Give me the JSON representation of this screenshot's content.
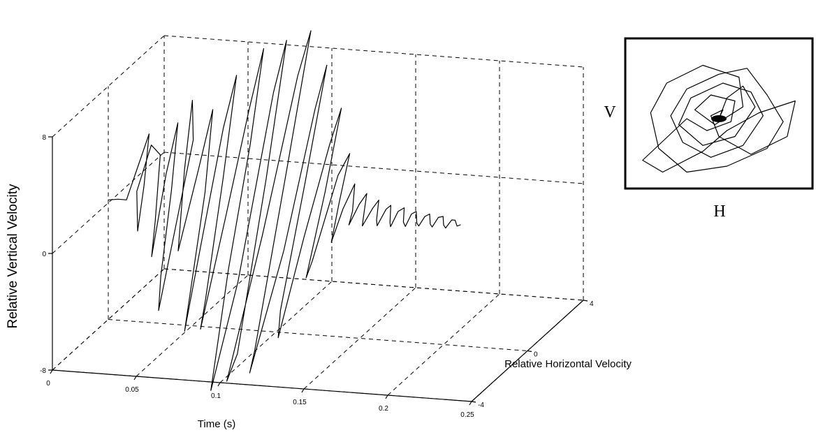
{
  "chart_data": [
    {
      "type": "line",
      "projection": "3d",
      "xlabel": "Time (s)",
      "ylabel": "Relative Horizontal Velocity",
      "zlabel": "Relative Vertical Velocity",
      "xlim": [
        0,
        0.25
      ],
      "ylim": [
        -4,
        4
      ],
      "zlim": [
        -8,
        8
      ],
      "x_ticks": [
        "0",
        "0.05",
        "0.1",
        "0.15",
        "0.2",
        "0.25"
      ],
      "y_ticks": [
        "-4",
        "0",
        "4"
      ],
      "z_ticks": [
        "-8",
        "0",
        "8"
      ],
      "grid": true,
      "series": [
        {
          "points": [
            [
              0.0,
              0.0,
              0.2
            ],
            [
              0.006,
              0.0,
              0.3
            ],
            [
              0.01,
              0.1,
              0.2
            ],
            [
              0.013,
              0.5,
              2.0
            ],
            [
              0.016,
              1.0,
              4.0
            ],
            [
              0.018,
              0.4,
              1.0
            ],
            [
              0.02,
              -0.3,
              -1.5
            ],
            [
              0.022,
              -0.6,
              1.5
            ],
            [
              0.024,
              0.2,
              4.0
            ],
            [
              0.026,
              0.6,
              3.0
            ],
            [
              0.028,
              0.0,
              -1.0
            ],
            [
              0.03,
              -0.5,
              -3.0
            ],
            [
              0.032,
              0.3,
              2.0
            ],
            [
              0.034,
              0.9,
              5.0
            ],
            [
              0.036,
              0.2,
              1.0
            ],
            [
              0.038,
              -0.8,
              -4.0
            ],
            [
              0.04,
              -1.2,
              -6.0
            ],
            [
              0.042,
              -0.2,
              -1.0
            ],
            [
              0.044,
              0.8,
              4.0
            ],
            [
              0.046,
              0.5,
              7.0
            ],
            [
              0.048,
              -0.3,
              3.0
            ],
            [
              0.05,
              -1.0,
              -2.0
            ],
            [
              0.052,
              0.2,
              2.5
            ],
            [
              0.054,
              1.0,
              6.0
            ],
            [
              0.056,
              0.2,
              1.0
            ],
            [
              0.058,
              -1.5,
              -7.0
            ],
            [
              0.06,
              -0.6,
              -2.0
            ],
            [
              0.062,
              0.8,
              5.0
            ],
            [
              0.064,
              1.5,
              8.0
            ],
            [
              0.066,
              0.3,
              2.0
            ],
            [
              0.068,
              -1.2,
              -5.0
            ],
            [
              0.07,
              -1.8,
              -6.5
            ],
            [
              0.072,
              -0.2,
              0.0
            ],
            [
              0.074,
              1.2,
              6.0
            ],
            [
              0.076,
              2.0,
              9.5
            ],
            [
              0.078,
              0.8,
              4.0
            ],
            [
              0.08,
              -1.0,
              -3.0
            ],
            [
              0.082,
              -2.5,
              -10.0
            ],
            [
              0.084,
              -0.8,
              -4.0
            ],
            [
              0.086,
              1.5,
              7.0
            ],
            [
              0.088,
              2.2,
              10.0
            ],
            [
              0.09,
              0.5,
              2.0
            ],
            [
              0.092,
              -1.8,
              -8.0
            ],
            [
              0.094,
              -2.8,
              -9.0
            ],
            [
              0.096,
              -0.5,
              -1.0
            ],
            [
              0.098,
              1.8,
              8.0
            ],
            [
              0.1,
              2.5,
              10.5
            ],
            [
              0.102,
              0.6,
              3.0
            ],
            [
              0.104,
              -2.0,
              -7.5
            ],
            [
              0.106,
              -2.6,
              -8.5
            ],
            [
              0.108,
              -0.4,
              -2.0
            ],
            [
              0.11,
              1.6,
              6.0
            ],
            [
              0.112,
              2.2,
              8.5
            ],
            [
              0.114,
              0.4,
              2.0
            ],
            [
              0.116,
              -1.6,
              -5.0
            ],
            [
              0.118,
              -2.0,
              -6.5
            ],
            [
              0.12,
              -0.4,
              -1.0
            ],
            [
              0.122,
              1.2,
              4.0
            ],
            [
              0.124,
              1.8,
              6.0
            ],
            [
              0.126,
              0.4,
              1.5
            ],
            [
              0.128,
              -1.2,
              -3.0
            ],
            [
              0.13,
              -1.0,
              -2.0
            ],
            [
              0.132,
              0.6,
              2.5
            ],
            [
              0.134,
              1.2,
              3.5
            ],
            [
              0.136,
              0.2,
              1.0
            ],
            [
              0.138,
              -0.6,
              -1.0
            ],
            [
              0.14,
              0.0,
              0.8
            ],
            [
              0.142,
              0.6,
              2.0
            ],
            [
              0.144,
              0.2,
              0.5
            ],
            [
              0.146,
              -0.3,
              0.0
            ],
            [
              0.148,
              0.2,
              1.0
            ],
            [
              0.15,
              0.5,
              1.5
            ],
            [
              0.152,
              0.0,
              0.2
            ],
            [
              0.154,
              -0.3,
              0.0
            ],
            [
              0.156,
              0.2,
              0.8
            ],
            [
              0.158,
              0.4,
              1.2
            ],
            [
              0.16,
              0.0,
              0.2
            ],
            [
              0.162,
              -0.2,
              0.0
            ],
            [
              0.164,
              0.2,
              0.8
            ],
            [
              0.166,
              0.3,
              1.0
            ],
            [
              0.168,
              0.0,
              0.1
            ],
            [
              0.17,
              -0.2,
              0.0
            ],
            [
              0.172,
              0.1,
              0.8
            ],
            [
              0.174,
              0.3,
              0.9
            ],
            [
              0.176,
              0.0,
              0.2
            ],
            [
              0.178,
              -0.1,
              0.0
            ],
            [
              0.18,
              0.1,
              0.7
            ],
            [
              0.182,
              0.2,
              0.8
            ],
            [
              0.184,
              0.0,
              0.2
            ],
            [
              0.186,
              -0.1,
              0.1
            ],
            [
              0.188,
              0.1,
              0.6
            ],
            [
              0.19,
              0.2,
              0.7
            ],
            [
              0.192,
              0.0,
              0.2
            ],
            [
              0.194,
              -0.1,
              0.1
            ],
            [
              0.196,
              0.1,
              0.6
            ],
            [
              0.198,
              0.2,
              0.6
            ],
            [
              0.2,
              0.0,
              0.2
            ],
            [
              0.202,
              -0.1,
              0.1
            ],
            [
              0.204,
              0.1,
              0.5
            ],
            [
              0.206,
              0.1,
              0.5
            ],
            [
              0.208,
              0.0,
              0.2
            ],
            [
              0.21,
              0.0,
              0.3
            ]
          ]
        }
      ]
    },
    {
      "type": "line",
      "projection": "phase",
      "xlabel": "H",
      "ylabel": "V",
      "grid": false,
      "series": [
        {
          "points": [
            [
              0.0,
              0.0
            ],
            [
              0.1,
              0.35
            ],
            [
              0.3,
              0.55
            ],
            [
              0.45,
              0.2
            ],
            [
              0.2,
              -0.3
            ],
            [
              -0.2,
              -0.45
            ],
            [
              -0.5,
              -0.1
            ],
            [
              -0.35,
              0.35
            ],
            [
              0.05,
              0.6
            ],
            [
              0.4,
              0.45
            ],
            [
              0.55,
              0.05
            ],
            [
              0.3,
              -0.45
            ],
            [
              -0.1,
              -0.65
            ],
            [
              -0.45,
              -0.4
            ],
            [
              -0.6,
              0.05
            ],
            [
              -0.4,
              0.5
            ],
            [
              0.0,
              0.75
            ],
            [
              0.35,
              0.85
            ],
            [
              0.6,
              0.4
            ],
            [
              0.8,
              -0.05
            ],
            [
              0.6,
              -0.5
            ],
            [
              0.1,
              -0.8
            ],
            [
              -0.4,
              -0.9
            ],
            [
              -0.75,
              -0.5
            ],
            [
              -0.85,
              0.1
            ],
            [
              -0.65,
              0.6
            ],
            [
              -0.2,
              0.9
            ],
            [
              0.25,
              0.7
            ],
            [
              0.3,
              0.2
            ],
            [
              -0.05,
              -0.1
            ],
            [
              -0.3,
              0.15
            ],
            [
              -0.1,
              0.4
            ],
            [
              0.2,
              0.3
            ],
            [
              0.15,
              -0.05
            ],
            [
              -0.15,
              -0.2
            ],
            [
              -0.4,
              0.0
            ],
            [
              -0.95,
              -0.7
            ],
            [
              -0.7,
              -0.9
            ],
            [
              -0.2,
              -0.55
            ],
            [
              0.1,
              -0.2
            ],
            [
              0.5,
              0.1
            ],
            [
              0.95,
              0.3
            ],
            [
              0.85,
              -0.3
            ],
            [
              0.4,
              -0.6
            ],
            [
              0.0,
              -0.3
            ],
            [
              -0.1,
              0.05
            ],
            [
              0.05,
              0.15
            ],
            [
              0.0,
              0.0
            ]
          ]
        }
      ]
    },
    {
      "type": "annotation",
      "side_label": "V",
      "bottom_label": "H"
    }
  ]
}
